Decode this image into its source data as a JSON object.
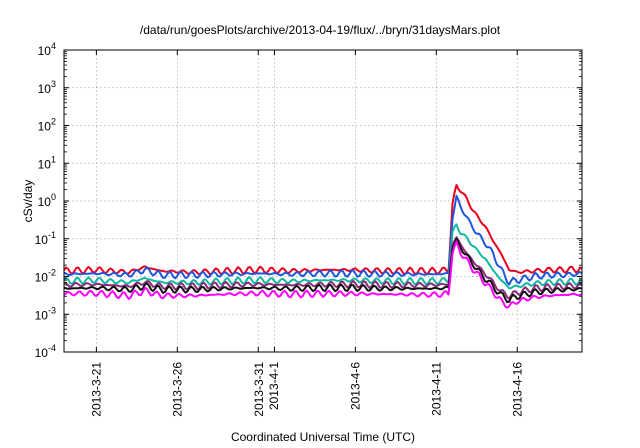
{
  "chart_data": {
    "type": "line",
    "title": "/data/run/goesPlots/archive/2013-04-19/flux/../bryn/31daysMars.plot",
    "xlabel": "Coordinated Universal Time (UTC)",
    "ylabel": "cSv/day",
    "yscale": "log",
    "ylim": [
      0.0001,
      10000
    ],
    "y_ticks": [
      {
        "value": 0.0001,
        "base": "10",
        "exp": "-4"
      },
      {
        "value": 0.001,
        "base": "10",
        "exp": "-3"
      },
      {
        "value": 0.01,
        "base": "10",
        "exp": "-2"
      },
      {
        "value": 0.1,
        "base": "10",
        "exp": "-1"
      },
      {
        "value": 1,
        "base": "10",
        "exp": "0"
      },
      {
        "value": 10,
        "base": "10",
        "exp": "1"
      },
      {
        "value": 100,
        "base": "10",
        "exp": "2"
      },
      {
        "value": 1000,
        "base": "10",
        "exp": "3"
      },
      {
        "value": 10000,
        "base": "10",
        "exp": "4"
      }
    ],
    "xlim": [
      "2013-03-19",
      "2013-04-20"
    ],
    "x_ticks": [
      {
        "date": "2013-03-21",
        "label": "2013-3-21"
      },
      {
        "date": "2013-03-26",
        "label": "2013-3-26"
      },
      {
        "date": "2013-03-31",
        "label": "2013-3-31"
      },
      {
        "date": "2013-04-01",
        "label": "2013-4-1"
      },
      {
        "date": "2013-04-06",
        "label": "2013-4-6"
      },
      {
        "date": "2013-04-11",
        "label": "2013-4-11"
      },
      {
        "date": "2013-04-16",
        "label": "2013-4-16"
      }
    ],
    "grid": true,
    "series": [
      {
        "color": "#e8001c",
        "values": [
          [
            "2013-03-19",
            0.014
          ],
          [
            "2013-03-21",
            0.015
          ],
          [
            "2013-03-23",
            0.013
          ],
          [
            "2013-03-24",
            0.018
          ],
          [
            "2013-03-25",
            0.014
          ],
          [
            "2013-03-27",
            0.013
          ],
          [
            "2013-03-29",
            0.014
          ],
          [
            "2013-03-31",
            0.015
          ],
          [
            "2013-04-02",
            0.014
          ],
          [
            "2013-04-04",
            0.015
          ],
          [
            "2013-04-06",
            0.015
          ],
          [
            "2013-04-08",
            0.014
          ],
          [
            "2013-04-10",
            0.014
          ],
          [
            "2013-04-11",
            0.014
          ],
          [
            "2013-04-11T18:00",
            0.015
          ],
          [
            "2013-04-12",
            0.8
          ],
          [
            "2013-04-12T06:00",
            2.5
          ],
          [
            "2013-04-12T12:00",
            2.0
          ],
          [
            "2013-04-13",
            0.9
          ],
          [
            "2013-04-13T12:00",
            0.4
          ],
          [
            "2013-04-14",
            0.22
          ],
          [
            "2013-04-14T12:00",
            0.09
          ],
          [
            "2013-04-15",
            0.04
          ],
          [
            "2013-04-15T12:00",
            0.015
          ],
          [
            "2013-04-16",
            0.013
          ],
          [
            "2013-04-17",
            0.014
          ],
          [
            "2013-04-18",
            0.015
          ],
          [
            "2013-04-19",
            0.015
          ],
          [
            "2013-04-20",
            0.016
          ]
        ]
      },
      {
        "color": "#1f56e0",
        "values": [
          [
            "2013-03-19",
            0.0115
          ],
          [
            "2013-03-21",
            0.012
          ],
          [
            "2013-03-23",
            0.011
          ],
          [
            "2013-03-24",
            0.015
          ],
          [
            "2013-03-25",
            0.011
          ],
          [
            "2013-03-27",
            0.011
          ],
          [
            "2013-03-29",
            0.0115
          ],
          [
            "2013-03-31",
            0.012
          ],
          [
            "2013-04-02",
            0.0115
          ],
          [
            "2013-04-04",
            0.012
          ],
          [
            "2013-04-06",
            0.012
          ],
          [
            "2013-04-08",
            0.0115
          ],
          [
            "2013-04-10",
            0.0115
          ],
          [
            "2013-04-11",
            0.0115
          ],
          [
            "2013-04-11T18:00",
            0.012
          ],
          [
            "2013-04-12",
            0.35
          ],
          [
            "2013-04-12T06:00",
            1.3
          ],
          [
            "2013-04-12T12:00",
            0.7
          ],
          [
            "2013-04-13",
            0.3
          ],
          [
            "2013-04-13T12:00",
            0.14
          ],
          [
            "2013-04-14",
            0.08
          ],
          [
            "2013-04-14T12:00",
            0.04
          ],
          [
            "2013-04-15",
            0.015
          ],
          [
            "2013-04-15T12:00",
            0.007
          ],
          [
            "2013-04-16",
            0.008
          ],
          [
            "2013-04-17",
            0.01
          ],
          [
            "2013-04-18",
            0.011
          ],
          [
            "2013-04-19",
            0.011
          ],
          [
            "2013-04-20",
            0.012
          ]
        ]
      },
      {
        "color": "#11b8a0",
        "values": [
          [
            "2013-03-19",
            0.0075
          ],
          [
            "2013-03-21",
            0.008
          ],
          [
            "2013-03-23",
            0.007
          ],
          [
            "2013-03-24",
            0.009
          ],
          [
            "2013-03-25",
            0.007
          ],
          [
            "2013-03-27",
            0.007
          ],
          [
            "2013-03-29",
            0.0075
          ],
          [
            "2013-03-31",
            0.008
          ],
          [
            "2013-04-02",
            0.0075
          ],
          [
            "2013-04-04",
            0.008
          ],
          [
            "2013-04-06",
            0.008
          ],
          [
            "2013-04-08",
            0.0075
          ],
          [
            "2013-04-10",
            0.0075
          ],
          [
            "2013-04-11",
            0.0075
          ],
          [
            "2013-04-11T18:00",
            0.008
          ],
          [
            "2013-04-12",
            0.14
          ],
          [
            "2013-04-12T06:00",
            0.23
          ],
          [
            "2013-04-12T12:00",
            0.15
          ],
          [
            "2013-04-13",
            0.09
          ],
          [
            "2013-04-13T12:00",
            0.05
          ],
          [
            "2013-04-14",
            0.03
          ],
          [
            "2013-04-14T12:00",
            0.015
          ],
          [
            "2013-04-15",
            0.008
          ],
          [
            "2013-04-15T12:00",
            0.005
          ],
          [
            "2013-04-16",
            0.0055
          ],
          [
            "2013-04-17",
            0.0065
          ],
          [
            "2013-04-18",
            0.007
          ],
          [
            "2013-04-19",
            0.0072
          ],
          [
            "2013-04-20",
            0.0075
          ]
        ]
      },
      {
        "color": "#8a2a7a",
        "values": [
          [
            "2013-03-19",
            0.006
          ],
          [
            "2013-03-21",
            0.0062
          ],
          [
            "2013-03-23",
            0.0055
          ],
          [
            "2013-03-24",
            0.007
          ],
          [
            "2013-03-25",
            0.0055
          ],
          [
            "2013-03-27",
            0.0055
          ],
          [
            "2013-03-29",
            0.006
          ],
          [
            "2013-03-31",
            0.0062
          ],
          [
            "2013-04-02",
            0.006
          ],
          [
            "2013-04-04",
            0.0062
          ],
          [
            "2013-04-06",
            0.0062
          ],
          [
            "2013-04-08",
            0.006
          ],
          [
            "2013-04-10",
            0.006
          ],
          [
            "2013-04-11",
            0.006
          ],
          [
            "2013-04-11T18:00",
            0.0062
          ],
          [
            "2013-04-12",
            0.07
          ],
          [
            "2013-04-12T06:00",
            0.11
          ],
          [
            "2013-04-12T12:00",
            0.07
          ],
          [
            "2013-04-13",
            0.035
          ],
          [
            "2013-04-13T12:00",
            0.02
          ],
          [
            "2013-04-14",
            0.012
          ],
          [
            "2013-04-14T12:00",
            0.007
          ],
          [
            "2013-04-15",
            0.004
          ],
          [
            "2013-04-15T12:00",
            0.003
          ],
          [
            "2013-04-16",
            0.0038
          ],
          [
            "2013-04-17",
            0.0048
          ],
          [
            "2013-04-18",
            0.0052
          ],
          [
            "2013-04-19",
            0.0055
          ],
          [
            "2013-04-20",
            0.0058
          ]
        ]
      },
      {
        "color": "#111111",
        "values": [
          [
            "2013-03-19",
            0.0048
          ],
          [
            "2013-03-21",
            0.005
          ],
          [
            "2013-03-23",
            0.0045
          ],
          [
            "2013-03-24",
            0.0056
          ],
          [
            "2013-03-25",
            0.0045
          ],
          [
            "2013-03-27",
            0.0045
          ],
          [
            "2013-03-29",
            0.0048
          ],
          [
            "2013-03-31",
            0.005
          ],
          [
            "2013-04-02",
            0.0048
          ],
          [
            "2013-04-04",
            0.005
          ],
          [
            "2013-04-06",
            0.005
          ],
          [
            "2013-04-08",
            0.0048
          ],
          [
            "2013-04-10",
            0.0048
          ],
          [
            "2013-04-11",
            0.0048
          ],
          [
            "2013-04-11T18:00",
            0.005
          ],
          [
            "2013-04-12",
            0.06
          ],
          [
            "2013-04-12T06:00",
            0.09
          ],
          [
            "2013-04-12T12:00",
            0.06
          ],
          [
            "2013-04-13",
            0.03
          ],
          [
            "2013-04-13T12:00",
            0.016
          ],
          [
            "2013-04-14",
            0.009
          ],
          [
            "2013-04-14T12:00",
            0.0055
          ],
          [
            "2013-04-15",
            0.0032
          ],
          [
            "2013-04-15T12:00",
            0.0024
          ],
          [
            "2013-04-16",
            0.003
          ],
          [
            "2013-04-17",
            0.0038
          ],
          [
            "2013-04-18",
            0.0042
          ],
          [
            "2013-04-19",
            0.0045
          ],
          [
            "2013-04-20",
            0.0047
          ]
        ]
      },
      {
        "color": "#ff00ff",
        "values": [
          [
            "2013-03-19",
            0.0035
          ],
          [
            "2013-03-21",
            0.0036
          ],
          [
            "2013-03-23",
            0.0031
          ],
          [
            "2013-03-24",
            0.0042
          ],
          [
            "2013-03-25",
            0.0031
          ],
          [
            "2013-03-27",
            0.0031
          ],
          [
            "2013-03-29",
            0.0034
          ],
          [
            "2013-03-31",
            0.0036
          ],
          [
            "2013-04-02",
            0.0034
          ],
          [
            "2013-04-04",
            0.0035
          ],
          [
            "2013-04-06",
            0.0035
          ],
          [
            "2013-04-08",
            0.0034
          ],
          [
            "2013-04-10",
            0.0033
          ],
          [
            "2013-04-11",
            0.0033
          ],
          [
            "2013-04-11T18:00",
            0.0035
          ],
          [
            "2013-04-12",
            0.045
          ],
          [
            "2013-04-12T06:00",
            0.07
          ],
          [
            "2013-04-12T12:00",
            0.045
          ],
          [
            "2013-04-13",
            0.022
          ],
          [
            "2013-04-13T12:00",
            0.012
          ],
          [
            "2013-04-14",
            0.007
          ],
          [
            "2013-04-14T12:00",
            0.004
          ],
          [
            "2013-04-15",
            0.0022
          ],
          [
            "2013-04-15T12:00",
            0.0016
          ],
          [
            "2013-04-16",
            0.0022
          ],
          [
            "2013-04-17",
            0.0028
          ],
          [
            "2013-04-18",
            0.0031
          ],
          [
            "2013-04-19",
            0.0033
          ],
          [
            "2013-04-20",
            0.0034
          ]
        ]
      }
    ]
  }
}
